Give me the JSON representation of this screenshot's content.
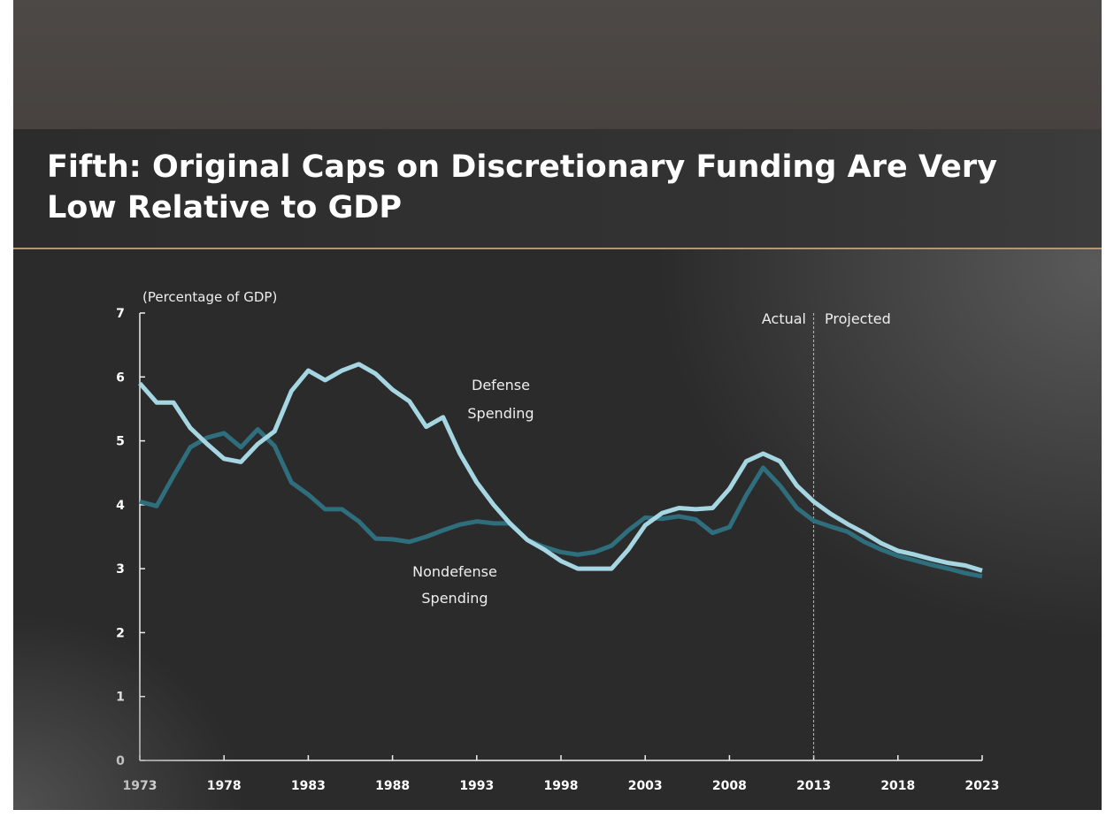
{
  "slide_title": "Fifth: Original Caps on Discretionary Funding Are Very Low Relative to GDP",
  "chart_data": {
    "type": "line",
    "title": "Fifth: Original Caps on Discretionary Funding Are Very Low Relative to GDP",
    "ylabel": "(Percentage of GDP)",
    "xlabel": "",
    "xlim": [
      1973,
      2023
    ],
    "ylim": [
      0,
      7
    ],
    "x_ticks": [
      "1973",
      "1978",
      "1983",
      "1988",
      "1993",
      "1998",
      "2003",
      "2008",
      "2013",
      "2018",
      "2023"
    ],
    "y_ticks": [
      "0",
      "1",
      "2",
      "3",
      "4",
      "5",
      "6",
      "7"
    ],
    "grid": false,
    "divider": {
      "year": 2013,
      "left_label": "Actual",
      "right_label": "Projected"
    },
    "x": [
      1973,
      1974,
      1975,
      1976,
      1977,
      1978,
      1979,
      1980,
      1981,
      1982,
      1983,
      1984,
      1985,
      1986,
      1987,
      1988,
      1989,
      1990,
      1991,
      1992,
      1993,
      1994,
      1995,
      1996,
      1997,
      1998,
      1999,
      2000,
      2001,
      2002,
      2003,
      2004,
      2005,
      2006,
      2007,
      2008,
      2009,
      2010,
      2011,
      2012,
      2013,
      2014,
      2015,
      2016,
      2017,
      2018,
      2019,
      2020,
      2021,
      2022,
      2023
    ],
    "series": [
      {
        "name": "Defense Spending",
        "label_line1": "Defense",
        "label_line2": "Spending",
        "color": "#a6d6e2",
        "values": [
          5.9,
          5.6,
          5.6,
          5.2,
          4.95,
          4.72,
          4.67,
          4.95,
          5.15,
          5.78,
          6.1,
          5.95,
          6.1,
          6.2,
          6.05,
          5.8,
          5.62,
          5.22,
          5.37,
          4.8,
          4.35,
          4.0,
          3.7,
          3.45,
          3.3,
          3.12,
          3.0,
          3.0,
          3.0,
          3.3,
          3.68,
          3.87,
          3.95,
          3.93,
          3.95,
          4.25,
          4.68,
          4.8,
          4.68,
          4.3,
          4.05,
          3.86,
          3.7,
          3.56,
          3.4,
          3.28,
          3.22,
          3.15,
          3.09,
          3.05,
          2.97
        ]
      },
      {
        "name": "Nondefense Spending",
        "label_line1": "Nondefense",
        "label_line2": "Spending",
        "color": "#2f6e7d",
        "values": [
          4.05,
          3.98,
          4.45,
          4.9,
          5.05,
          5.12,
          4.9,
          5.18,
          4.92,
          4.35,
          4.16,
          3.93,
          3.93,
          3.74,
          3.47,
          3.46,
          3.42,
          3.5,
          3.6,
          3.69,
          3.74,
          3.71,
          3.71,
          3.45,
          3.34,
          3.26,
          3.22,
          3.26,
          3.36,
          3.6,
          3.8,
          3.78,
          3.82,
          3.77,
          3.56,
          3.65,
          4.15,
          4.58,
          4.3,
          3.95,
          3.75,
          3.66,
          3.58,
          3.42,
          3.3,
          3.2,
          3.13,
          3.06,
          3.0,
          2.93,
          2.88
        ]
      }
    ]
  }
}
